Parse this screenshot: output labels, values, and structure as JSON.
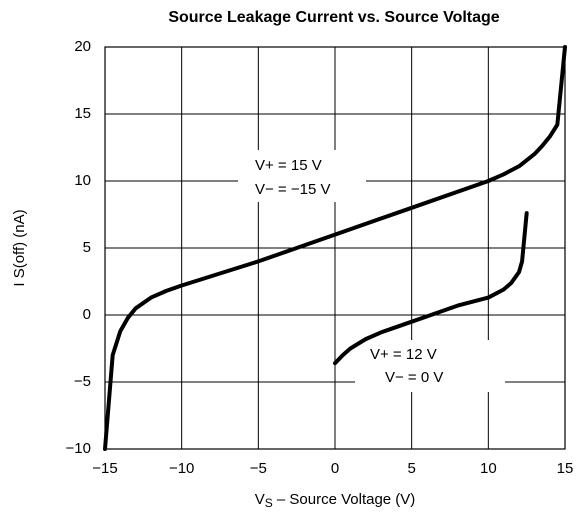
{
  "chart_data": {
    "type": "line",
    "title": "Source Leakage Current vs. Source Voltage",
    "xlabel": {
      "main": "V",
      "sub": "S",
      "rest": " – Source Voltage (V)"
    },
    "ylabel": "I S(off) (nA)",
    "xlim": [
      -15,
      15
    ],
    "ylim": [
      -10,
      20
    ],
    "xticks": [
      {
        "value": -15,
        "label": "−15"
      },
      {
        "value": -10,
        "label": "−10"
      },
      {
        "value": -5,
        "label": "−5"
      },
      0,
      5,
      10,
      15
    ],
    "yticks": [
      {
        "value": -10,
        "label": "−10"
      },
      {
        "value": -5,
        "label": "−5"
      },
      0,
      5,
      10,
      15,
      20
    ],
    "grid": true,
    "annotations": [
      "V+ = 15 V",
      "V− = −15 V",
      "V+ = 12 V",
      "V− = 0 V"
    ],
    "series": [
      {
        "color": "#000000",
        "x": [
          -15,
          -14.5,
          -14,
          -13.5,
          -13,
          -12,
          -11,
          -10,
          -5,
          0,
          5,
          10,
          11,
          12,
          13,
          13.5,
          14,
          14.5,
          15
        ],
        "values": [
          -10,
          -3,
          -1.2,
          -0.2,
          0.5,
          1.3,
          1.8,
          2.2,
          4,
          6,
          8,
          10,
          10.5,
          11.1,
          12,
          12.6,
          13.3,
          14.2,
          20
        ]
      },
      {
        "color": "#000000",
        "x": [
          0,
          0.5,
          1,
          2,
          3,
          4,
          5,
          6,
          7,
          8,
          9,
          10,
          11,
          11.5,
          12,
          12.2,
          12.5
        ],
        "values": [
          -3.6,
          -3,
          -2.5,
          -1.8,
          -1.3,
          -0.9,
          -0.5,
          -0.1,
          0.3,
          0.7,
          1.0,
          1.3,
          1.9,
          2.4,
          3.2,
          4,
          7.6
        ]
      }
    ]
  }
}
